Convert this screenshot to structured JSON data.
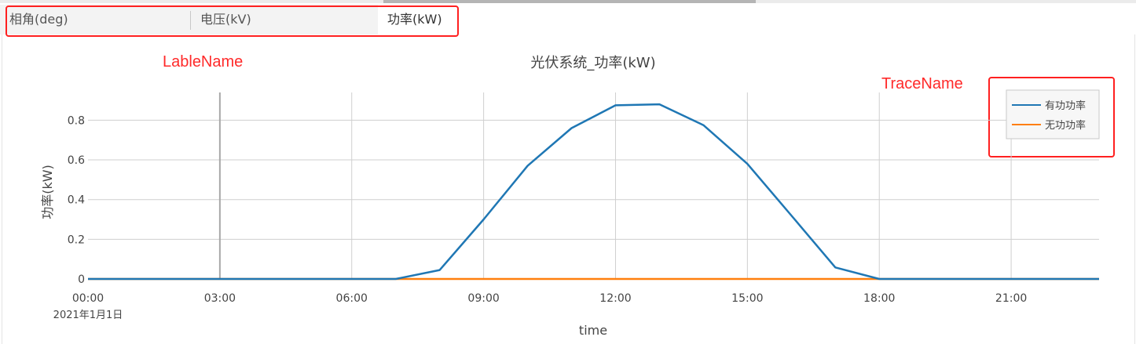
{
  "tabs": [
    {
      "label": "相角(deg)",
      "active": false
    },
    {
      "label": "电压(kV)",
      "active": false
    },
    {
      "label": "功率(kW)",
      "active": true
    }
  ],
  "annotations": {
    "label_name": "LableName",
    "trace_name": "TraceName"
  },
  "colors": {
    "annotation": "#ff2020",
    "series_active": "#1f77b4",
    "series_reactive": "#ff7f0e"
  },
  "chart_data": {
    "type": "line",
    "title": "光伏系统_功率(kW)",
    "xlabel": "time",
    "ylabel": "功率(kW)",
    "x_date_label": "2021年1月1日",
    "x": [
      "00:00",
      "01:00",
      "02:00",
      "03:00",
      "04:00",
      "05:00",
      "06:00",
      "07:00",
      "08:00",
      "09:00",
      "10:00",
      "11:00",
      "12:00",
      "13:00",
      "14:00",
      "15:00",
      "16:00",
      "17:00",
      "18:00",
      "19:00",
      "20:00",
      "21:00",
      "22:00",
      "23:00"
    ],
    "x_ticks": [
      "00:00",
      "03:00",
      "06:00",
      "09:00",
      "12:00",
      "15:00",
      "18:00",
      "21:00"
    ],
    "y_ticks": [
      0,
      0.2,
      0.4,
      0.6,
      0.8
    ],
    "xlim": [
      "00:00",
      "23:00"
    ],
    "ylim": [
      0,
      0.92
    ],
    "grid": true,
    "legend_position": "top-right",
    "series": [
      {
        "name": "有功功率",
        "values": [
          0,
          0,
          0,
          0,
          0,
          0,
          0,
          0,
          0.045,
          0.3,
          0.57,
          0.76,
          0.875,
          0.88,
          0.775,
          0.58,
          0.32,
          0.058,
          0,
          0,
          0,
          0,
          0,
          0
        ]
      },
      {
        "name": "无功功率",
        "values": [
          0,
          0,
          0,
          0,
          0,
          0,
          0,
          0,
          0,
          0,
          0,
          0,
          0,
          0,
          0,
          0,
          0,
          0,
          0,
          0,
          0,
          0,
          0,
          0
        ]
      }
    ]
  }
}
